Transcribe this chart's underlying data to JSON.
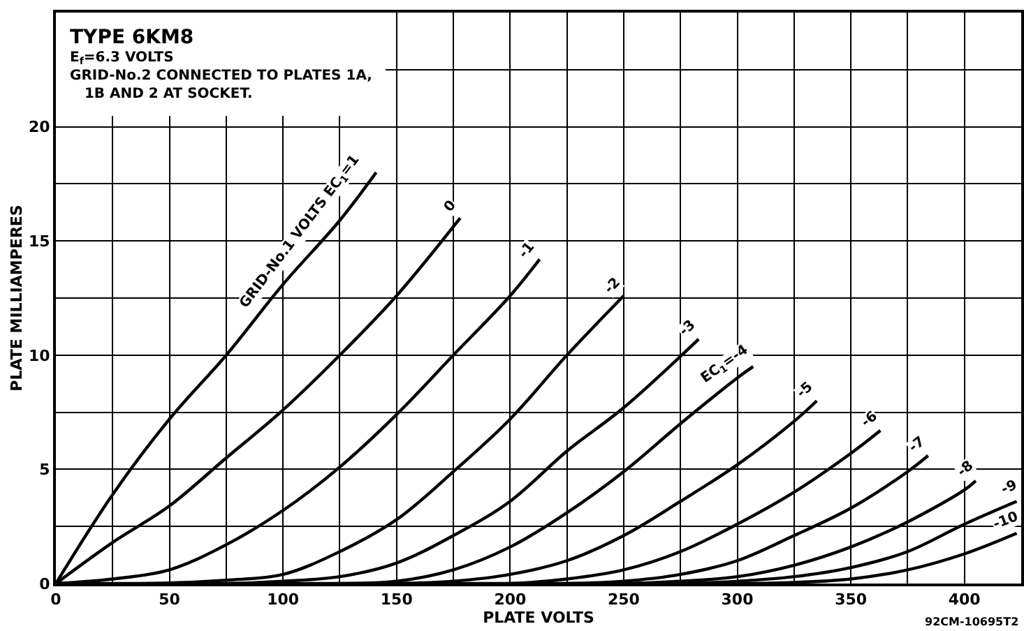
{
  "chart_data": {
    "type": "line",
    "xlabel": "PLATE VOLTS",
    "ylabel": "PLATE MILLIAMPERES",
    "series": [
      {
        "name": "GRID-No.1 VOLTS EC$_{1}$=1",
        "color": "#000000",
        "x": [
          0,
          25,
          50,
          75,
          100,
          125,
          141
        ],
        "values": [
          0,
          3.9,
          7.2,
          10,
          13.1,
          15.9,
          18
        ]
      },
      {
        "name": "0",
        "color": "#000000",
        "x": [
          0,
          25,
          50,
          75,
          100,
          125,
          150,
          178
        ],
        "values": [
          0,
          1.8,
          3.4,
          5.5,
          7.6,
          10,
          12.6,
          16
        ]
      },
      {
        "name": "-1",
        "color": "#000000",
        "x": [
          0,
          25,
          50,
          75,
          100,
          125,
          150,
          175,
          200,
          213
        ],
        "values": [
          0,
          0.2,
          0.6,
          1.7,
          3.2,
          5.1,
          7.4,
          10,
          12.6,
          14.2
        ]
      },
      {
        "name": "-2",
        "color": "#000000",
        "x": [
          0,
          40,
          75,
          100,
          125,
          150,
          175,
          200,
          225,
          250
        ],
        "values": [
          0,
          0,
          0.15,
          0.4,
          1.4,
          2.8,
          4.9,
          7.2,
          10,
          12.6
        ]
      },
      {
        "name": "-3",
        "color": "#000000",
        "x": [
          0,
          75,
          100,
          125,
          150,
          175,
          200,
          225,
          250,
          283
        ],
        "values": [
          0,
          0,
          0.1,
          0.3,
          0.9,
          2.1,
          3.6,
          5.8,
          7.7,
          10.7
        ]
      },
      {
        "name": "EC$_{1}$=-4",
        "color": "#000000",
        "x": [
          0,
          125,
          150,
          175,
          200,
          225,
          250,
          275,
          300,
          307
        ],
        "values": [
          0,
          0,
          0.1,
          0.6,
          1.6,
          3.1,
          4.9,
          7,
          9,
          9.5
        ]
      },
      {
        "name": "-5",
        "color": "#000000",
        "x": [
          0,
          150,
          175,
          200,
          225,
          250,
          275,
          300,
          325,
          335
        ],
        "values": [
          0,
          0,
          0.1,
          0.4,
          1,
          2.1,
          3.6,
          5.2,
          7.1,
          8
        ]
      },
      {
        "name": "-6",
        "color": "#000000",
        "x": [
          0,
          200,
          225,
          250,
          275,
          300,
          325,
          350,
          363
        ],
        "values": [
          0,
          0,
          0.2,
          0.6,
          1.4,
          2.6,
          4,
          5.7,
          6.7
        ]
      },
      {
        "name": "-7",
        "color": "#000000",
        "x": [
          0,
          225,
          250,
          275,
          300,
          325,
          350,
          375,
          384
        ],
        "values": [
          0,
          0,
          0.1,
          0.4,
          1,
          2.1,
          3.3,
          4.9,
          5.6
        ]
      },
      {
        "name": "-8",
        "color": "#000000",
        "x": [
          0,
          250,
          275,
          300,
          325,
          350,
          375,
          400,
          405
        ],
        "values": [
          0,
          0,
          0.1,
          0.3,
          0.8,
          1.6,
          2.7,
          4.1,
          4.5
        ]
      },
      {
        "name": "-9",
        "color": "#000000",
        "x": [
          0,
          275,
          300,
          325,
          350,
          375,
          400,
          423
        ],
        "values": [
          0,
          0,
          0.1,
          0.3,
          0.7,
          1.4,
          2.6,
          3.6
        ]
      },
      {
        "name": "-10",
        "color": "#000000",
        "x": [
          0,
          300,
          325,
          350,
          375,
          400,
          423
        ],
        "values": [
          0,
          0,
          0.05,
          0.2,
          0.6,
          1.3,
          2.2
        ]
      }
    ],
    "xlim": [
      0,
      425
    ],
    "xticks": [
      0,
      {
        "value": 25,
        "label": null
      },
      50,
      {
        "value": 75,
        "label": null
      },
      100,
      {
        "value": 125,
        "label": null
      },
      150,
      {
        "value": 175,
        "label": null
      },
      200,
      {
        "value": 225,
        "label": null
      },
      250,
      {
        "value": 275,
        "label": null
      },
      300,
      {
        "value": 325,
        "label": null
      },
      350,
      {
        "value": 375,
        "label": null
      },
      400
    ],
    "ylim": [
      0,
      25
    ],
    "yticks": [
      0,
      {
        "value": 2.5,
        "label": null
      },
      5,
      {
        "value": 7.5,
        "label": null
      },
      10,
      {
        "value": 12.5,
        "label": null
      },
      15,
      {
        "value": 17.5,
        "label": null
      },
      20,
      {
        "value": 22.5,
        "label": null
      },
      {
        "value": 25,
        "label": null
      }
    ],
    "grid": true,
    "legend": false,
    "marker": "none",
    "line_style": "solid",
    "annotations": [
      "TYPE 6KM8",
      "E$_{f}$=6.3 VOLTS",
      "GRID-No.2 CONNECTED TO PLATES 1A, 1B AND 2 AT SOCKET.",
      "92CM-10695T2"
    ]
  }
}
